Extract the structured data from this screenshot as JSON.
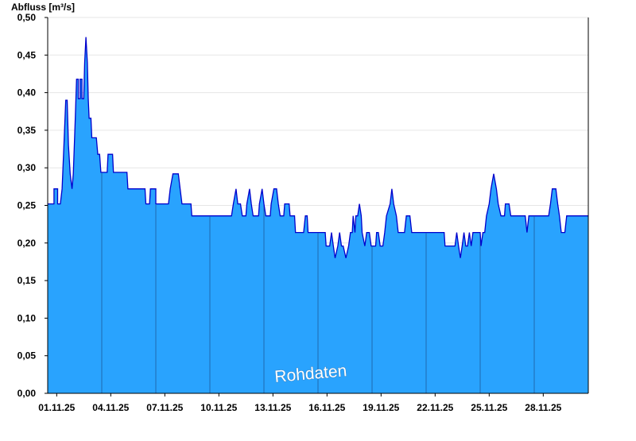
{
  "chart_data": {
    "type": "area",
    "ylabel": "Abfluss [m³/s]",
    "xlabel": "",
    "title": "",
    "ylim": [
      0,
      0.5
    ],
    "xlim": [
      0,
      30
    ],
    "grid": "horizontal",
    "colors": {
      "fill": "#29a3fe",
      "line": "#0000cc",
      "grid": "#e6e6e6",
      "day_lines": "#1f68b0",
      "axis": "#000000"
    },
    "y_ticks": [
      {
        "value": 0.0,
        "label": "0,00"
      },
      {
        "value": 0.05,
        "label": "0,05"
      },
      {
        "value": 0.1,
        "label": "0,10"
      },
      {
        "value": 0.15,
        "label": "0,15"
      },
      {
        "value": 0.2,
        "label": "0,20"
      },
      {
        "value": 0.25,
        "label": "0,25"
      },
      {
        "value": 0.3,
        "label": "0,30"
      },
      {
        "value": 0.35,
        "label": "0,35"
      },
      {
        "value": 0.4,
        "label": "0,40"
      },
      {
        "value": 0.45,
        "label": "0,45"
      },
      {
        "value": 0.5,
        "label": "0,50"
      }
    ],
    "x_ticks": [
      {
        "day": 0.5,
        "label": "01.11.25"
      },
      {
        "day": 3.5,
        "label": "04.11.25"
      },
      {
        "day": 6.5,
        "label": "07.11.25"
      },
      {
        "day": 9.5,
        "label": "10.11.25"
      },
      {
        "day": 12.5,
        "label": "13.11.25"
      },
      {
        "day": 15.5,
        "label": "16.11.25"
      },
      {
        "day": 18.5,
        "label": "19.11.25"
      },
      {
        "day": 21.5,
        "label": "22.11.25"
      },
      {
        "day": 24.5,
        "label": "25.11.25"
      },
      {
        "day": 27.5,
        "label": "28.11.25"
      }
    ],
    "day_lines": [
      3,
      6,
      9,
      12,
      15,
      18,
      21,
      24,
      27
    ],
    "annotation": "Rohdaten",
    "series": [
      {
        "values": [
          [
            0.0,
            0.252
          ],
          [
            0.35,
            0.252
          ],
          [
            0.35,
            0.272
          ],
          [
            0.55,
            0.272
          ],
          [
            0.55,
            0.252
          ],
          [
            0.7,
            0.252
          ],
          [
            0.8,
            0.272
          ],
          [
            0.9,
            0.33
          ],
          [
            1.0,
            0.39
          ],
          [
            1.08,
            0.39
          ],
          [
            1.15,
            0.33
          ],
          [
            1.25,
            0.292
          ],
          [
            1.35,
            0.272
          ],
          [
            1.42,
            0.292
          ],
          [
            1.52,
            0.36
          ],
          [
            1.6,
            0.418
          ],
          [
            1.7,
            0.418
          ],
          [
            1.7,
            0.392
          ],
          [
            1.8,
            0.392
          ],
          [
            1.8,
            0.418
          ],
          [
            1.9,
            0.418
          ],
          [
            1.9,
            0.392
          ],
          [
            2.0,
            0.392
          ],
          [
            2.05,
            0.44
          ],
          [
            2.12,
            0.474
          ],
          [
            2.2,
            0.44
          ],
          [
            2.25,
            0.392
          ],
          [
            2.3,
            0.366
          ],
          [
            2.4,
            0.366
          ],
          [
            2.45,
            0.34
          ],
          [
            2.7,
            0.34
          ],
          [
            2.78,
            0.318
          ],
          [
            2.88,
            0.318
          ],
          [
            2.95,
            0.294
          ],
          [
            3.3,
            0.294
          ],
          [
            3.35,
            0.318
          ],
          [
            3.6,
            0.318
          ],
          [
            3.65,
            0.294
          ],
          [
            4.4,
            0.294
          ],
          [
            4.45,
            0.272
          ],
          [
            5.4,
            0.272
          ],
          [
            5.45,
            0.252
          ],
          [
            5.65,
            0.252
          ],
          [
            5.7,
            0.272
          ],
          [
            6.0,
            0.272
          ],
          [
            6.0,
            0.252
          ],
          [
            6.7,
            0.252
          ],
          [
            6.8,
            0.272
          ],
          [
            6.95,
            0.292
          ],
          [
            7.25,
            0.292
          ],
          [
            7.35,
            0.272
          ],
          [
            7.45,
            0.252
          ],
          [
            7.95,
            0.252
          ],
          [
            8.0,
            0.236
          ],
          [
            10.2,
            0.236
          ],
          [
            10.3,
            0.252
          ],
          [
            10.45,
            0.272
          ],
          [
            10.55,
            0.252
          ],
          [
            10.7,
            0.252
          ],
          [
            10.8,
            0.236
          ],
          [
            11.0,
            0.236
          ],
          [
            11.05,
            0.252
          ],
          [
            11.2,
            0.272
          ],
          [
            11.3,
            0.252
          ],
          [
            11.4,
            0.236
          ],
          [
            11.7,
            0.236
          ],
          [
            11.75,
            0.252
          ],
          [
            11.9,
            0.272
          ],
          [
            12.0,
            0.252
          ],
          [
            12.1,
            0.236
          ],
          [
            12.35,
            0.236
          ],
          [
            12.4,
            0.252
          ],
          [
            12.55,
            0.272
          ],
          [
            12.7,
            0.272
          ],
          [
            12.8,
            0.252
          ],
          [
            12.9,
            0.236
          ],
          [
            13.1,
            0.236
          ],
          [
            13.15,
            0.252
          ],
          [
            13.4,
            0.252
          ],
          [
            13.45,
            0.236
          ],
          [
            13.7,
            0.236
          ],
          [
            13.75,
            0.214
          ],
          [
            14.2,
            0.214
          ],
          [
            14.3,
            0.236
          ],
          [
            14.4,
            0.236
          ],
          [
            14.45,
            0.214
          ],
          [
            15.4,
            0.214
          ],
          [
            15.45,
            0.196
          ],
          [
            15.65,
            0.196
          ],
          [
            15.75,
            0.214
          ],
          [
            15.85,
            0.196
          ],
          [
            15.95,
            0.18
          ],
          [
            16.1,
            0.196
          ],
          [
            16.2,
            0.214
          ],
          [
            16.3,
            0.196
          ],
          [
            16.4,
            0.196
          ],
          [
            16.55,
            0.18
          ],
          [
            16.7,
            0.196
          ],
          [
            16.8,
            0.214
          ],
          [
            16.9,
            0.214
          ],
          [
            16.95,
            0.236
          ],
          [
            17.05,
            0.214
          ],
          [
            17.1,
            0.236
          ],
          [
            17.2,
            0.236
          ],
          [
            17.3,
            0.252
          ],
          [
            17.4,
            0.236
          ],
          [
            17.45,
            0.214
          ],
          [
            17.6,
            0.196
          ],
          [
            17.7,
            0.214
          ],
          [
            17.85,
            0.214
          ],
          [
            17.95,
            0.196
          ],
          [
            18.2,
            0.196
          ],
          [
            18.25,
            0.214
          ],
          [
            18.35,
            0.214
          ],
          [
            18.45,
            0.196
          ],
          [
            18.6,
            0.196
          ],
          [
            18.7,
            0.214
          ],
          [
            18.8,
            0.236
          ],
          [
            19.0,
            0.252
          ],
          [
            19.1,
            0.272
          ],
          [
            19.2,
            0.252
          ],
          [
            19.35,
            0.236
          ],
          [
            19.45,
            0.214
          ],
          [
            19.8,
            0.214
          ],
          [
            19.9,
            0.236
          ],
          [
            20.1,
            0.236
          ],
          [
            20.2,
            0.214
          ],
          [
            21.5,
            0.214
          ],
          [
            21.6,
            0.214
          ],
          [
            22.0,
            0.214
          ],
          [
            22.05,
            0.196
          ],
          [
            22.6,
            0.196
          ],
          [
            22.7,
            0.214
          ],
          [
            22.8,
            0.196
          ],
          [
            22.9,
            0.18
          ],
          [
            23.0,
            0.196
          ],
          [
            23.1,
            0.214
          ],
          [
            23.2,
            0.196
          ],
          [
            23.3,
            0.196
          ],
          [
            23.4,
            0.214
          ],
          [
            23.5,
            0.196
          ],
          [
            23.6,
            0.214
          ],
          [
            24.0,
            0.214
          ],
          [
            24.05,
            0.196
          ],
          [
            24.15,
            0.214
          ],
          [
            24.25,
            0.214
          ],
          [
            24.35,
            0.236
          ],
          [
            24.5,
            0.252
          ],
          [
            24.6,
            0.272
          ],
          [
            24.75,
            0.292
          ],
          [
            24.9,
            0.272
          ],
          [
            25.0,
            0.252
          ],
          [
            25.15,
            0.236
          ],
          [
            25.35,
            0.236
          ],
          [
            25.4,
            0.252
          ],
          [
            25.6,
            0.252
          ],
          [
            25.7,
            0.236
          ],
          [
            26.5,
            0.236
          ],
          [
            26.6,
            0.214
          ],
          [
            26.7,
            0.236
          ],
          [
            27.8,
            0.236
          ],
          [
            27.9,
            0.252
          ],
          [
            28.0,
            0.272
          ],
          [
            28.2,
            0.272
          ],
          [
            28.3,
            0.252
          ],
          [
            28.4,
            0.236
          ],
          [
            28.5,
            0.214
          ],
          [
            28.7,
            0.214
          ],
          [
            28.8,
            0.236
          ],
          [
            30.0,
            0.236
          ]
        ]
      }
    ]
  }
}
